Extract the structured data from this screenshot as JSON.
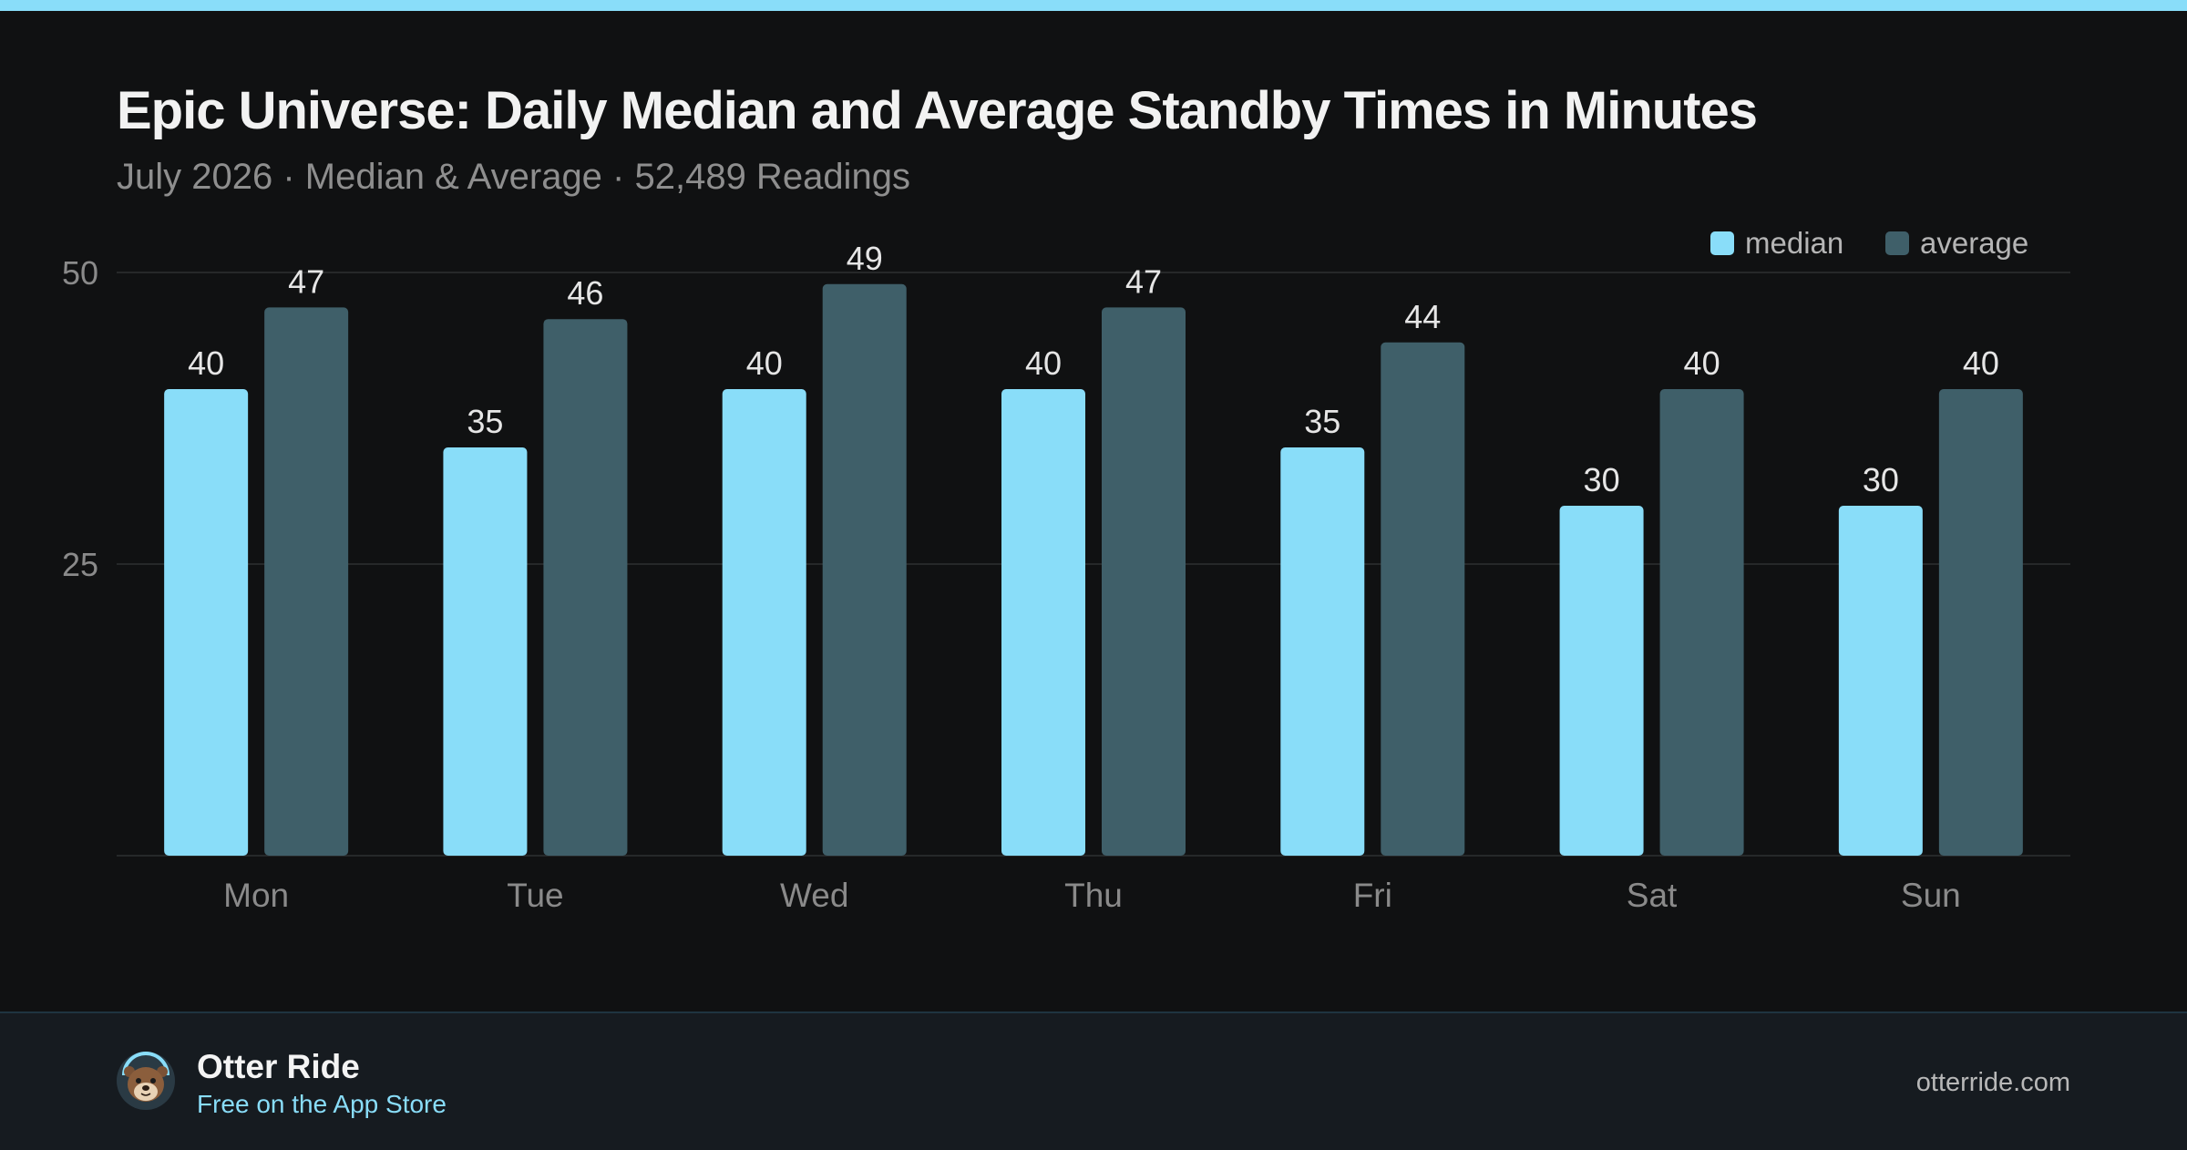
{
  "header": {
    "title": "Epic Universe: Daily Median and Average Standby Times in Minutes",
    "subtitle": "July 2026 · Median & Average · 52,489 Readings"
  },
  "colors": {
    "accent": "#89ddf9",
    "median": "#89ddf9",
    "average": "#3f5f69",
    "background": "#101112",
    "footer_background": "#161b20"
  },
  "chart_data": {
    "type": "bar",
    "title": "Epic Universe: Daily Median and Average Standby Times in Minutes",
    "subtitle": "July 2026 · Median & Average · 52,489 Readings",
    "xlabel": "",
    "ylabel": "",
    "categories": [
      "Mon",
      "Tue",
      "Wed",
      "Thu",
      "Fri",
      "Sat",
      "Sun"
    ],
    "series": [
      {
        "name": "median",
        "color": "#89ddf9",
        "values": [
          40,
          35,
          40,
          40,
          35,
          30,
          30
        ]
      },
      {
        "name": "average",
        "color": "#3f5f69",
        "values": [
          47,
          46,
          49,
          47,
          44,
          40,
          40
        ]
      }
    ],
    "ylim": [
      0,
      50
    ],
    "yticks": [
      25,
      50
    ],
    "grid": true,
    "legend": "top-right",
    "data_labels": true
  },
  "footer": {
    "logo_icon": "otter-avatar-icon",
    "app_name": "Otter Ride",
    "tagline": "Free on the App Store",
    "website": "otterride.com"
  }
}
